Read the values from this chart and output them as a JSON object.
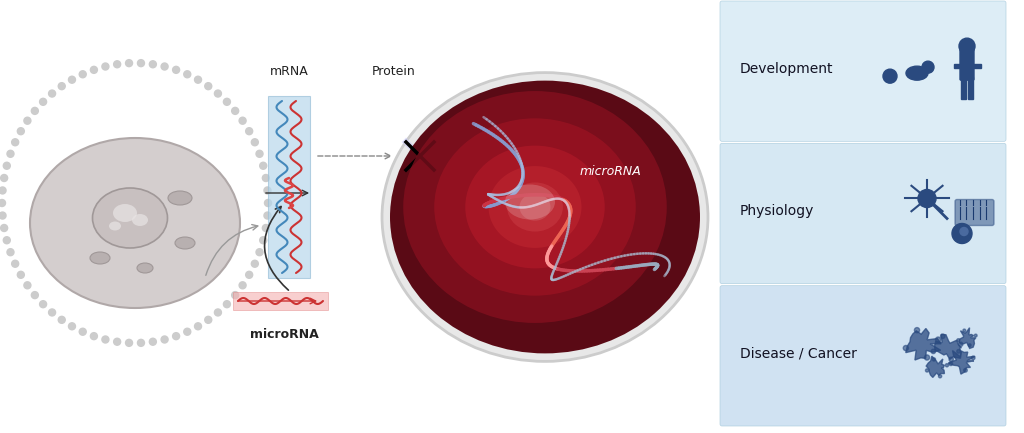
{
  "bg_color": "#ffffff",
  "dark_blue": "#2a4a7f",
  "text_color": "#222222",
  "labels": {
    "mrna": "mRNA",
    "protein": "Protein",
    "microrna": "microRNA",
    "development": "Development",
    "physiology": "Physiology",
    "disease": "Disease / Cancer"
  },
  "panel_colors": [
    "#d8eaf5",
    "#cfe4f2",
    "#c8ddf0"
  ],
  "fig_width": 10.24,
  "fig_height": 4.33
}
